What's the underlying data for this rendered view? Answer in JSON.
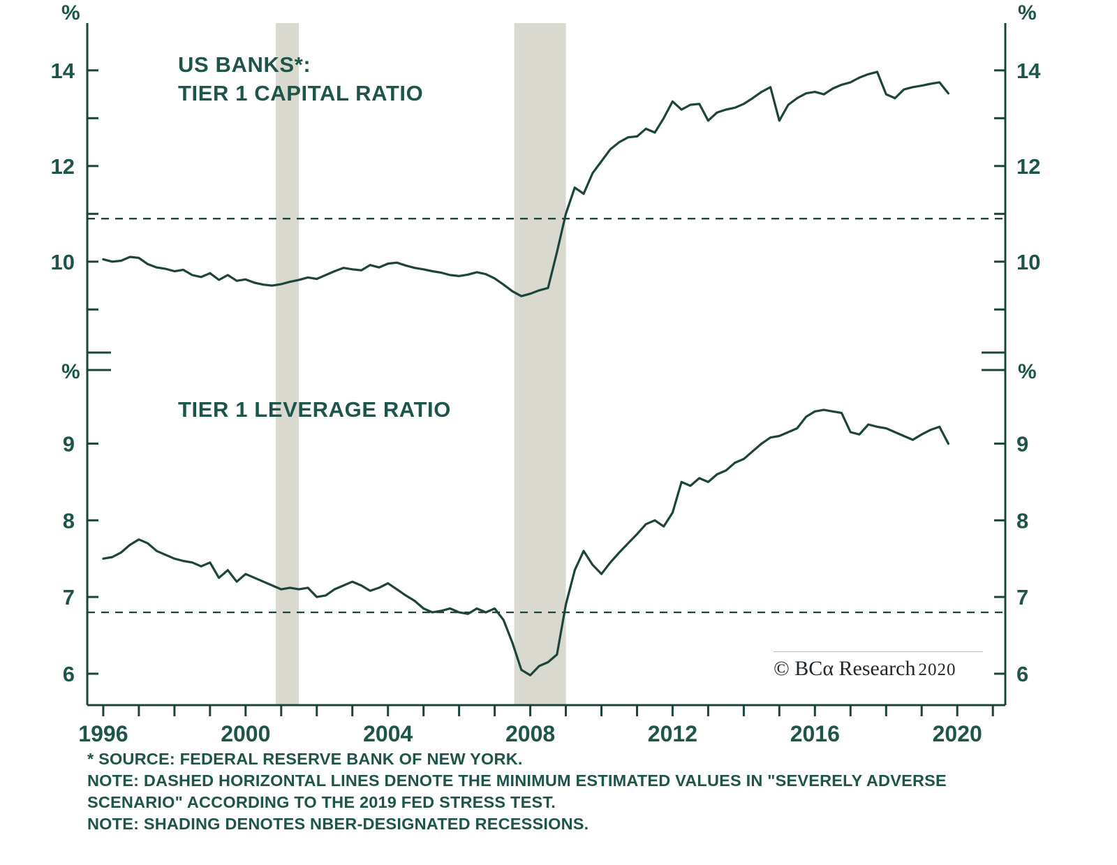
{
  "colors": {
    "line": "#1C443C",
    "text": "#1D554B",
    "recession_shading": "#D9D9CF",
    "logo_text": "#20282e"
  },
  "chart_data": [
    {
      "type": "line",
      "title_lines": [
        "US BANKS*:",
        "TIER 1 CAPITAL RATIO"
      ],
      "unit": "%",
      "ylim": [
        8.1,
        14.99
      ],
      "yticks": [
        10,
        12,
        14
      ],
      "stress_test_minimum": 10.9,
      "x_start": 1996.0,
      "x_step": 0.25,
      "values": [
        10.05,
        10.0,
        10.02,
        10.1,
        10.08,
        9.95,
        9.88,
        9.85,
        9.8,
        9.83,
        9.72,
        9.68,
        9.76,
        9.62,
        9.72,
        9.6,
        9.63,
        9.56,
        9.52,
        9.5,
        9.53,
        9.58,
        9.62,
        9.67,
        9.64,
        9.72,
        9.8,
        9.87,
        9.84,
        9.82,
        9.93,
        9.88,
        9.96,
        9.98,
        9.92,
        9.87,
        9.84,
        9.8,
        9.77,
        9.72,
        9.7,
        9.73,
        9.78,
        9.74,
        9.65,
        9.52,
        9.38,
        9.28,
        9.33,
        9.4,
        9.45,
        10.2,
        11.0,
        11.55,
        11.42,
        11.85,
        12.1,
        12.35,
        12.5,
        12.6,
        12.62,
        12.78,
        12.7,
        13.0,
        13.35,
        13.18,
        13.28,
        13.3,
        12.95,
        13.12,
        13.18,
        13.22,
        13.3,
        13.42,
        13.55,
        13.65,
        12.95,
        13.28,
        13.42,
        13.52,
        13.55,
        13.5,
        13.62,
        13.7,
        13.75,
        13.85,
        13.92,
        13.97,
        13.5,
        13.42,
        13.6,
        13.65,
        13.68,
        13.72,
        13.75,
        13.52
      ]
    },
    {
      "type": "line",
      "title_lines": [
        "TIER 1 LEVERAGE RATIO"
      ],
      "unit": "%",
      "ylim": [
        5.59,
        9.96
      ],
      "yticks": [
        6,
        7,
        8,
        9
      ],
      "stress_test_minimum": 6.8,
      "x_start": 1996.0,
      "x_step": 0.25,
      "values": [
        7.5,
        7.52,
        7.58,
        7.68,
        7.75,
        7.7,
        7.6,
        7.55,
        7.5,
        7.47,
        7.45,
        7.4,
        7.45,
        7.25,
        7.35,
        7.2,
        7.3,
        7.25,
        7.2,
        7.15,
        7.1,
        7.12,
        7.1,
        7.12,
        7.0,
        7.02,
        7.1,
        7.15,
        7.2,
        7.15,
        7.08,
        7.12,
        7.18,
        7.1,
        7.02,
        6.95,
        6.85,
        6.8,
        6.82,
        6.85,
        6.8,
        6.78,
        6.85,
        6.8,
        6.85,
        6.7,
        6.4,
        6.05,
        5.98,
        6.1,
        6.15,
        6.25,
        6.9,
        7.35,
        7.6,
        7.42,
        7.3,
        7.45,
        7.58,
        7.7,
        7.82,
        7.95,
        8.0,
        7.92,
        8.1,
        8.5,
        8.45,
        8.55,
        8.5,
        8.6,
        8.65,
        8.75,
        8.8,
        8.9,
        9.0,
        9.08,
        9.1,
        9.15,
        9.2,
        9.35,
        9.42,
        9.44,
        9.42,
        9.4,
        9.15,
        9.12,
        9.25,
        9.22,
        9.2,
        9.15,
        9.1,
        9.05,
        9.12,
        9.18,
        9.22,
        9.0
      ]
    }
  ],
  "x_axis": {
    "range": [
      1995.55,
      2021.35
    ],
    "tick_start": 1996,
    "tick_end": 2021,
    "label_years": [
      1996,
      2000,
      2004,
      2008,
      2012,
      2016,
      2020
    ],
    "labels": [
      "1996",
      "2000",
      "2004",
      "2008",
      "2012",
      "2016",
      "2020"
    ]
  },
  "recessions": [
    {
      "start": 2000.85,
      "end": 2001.5
    },
    {
      "start": 2007.55,
      "end": 2009.0
    }
  ],
  "footnotes": [
    "* SOURCE: FEDERAL RESERVE BANK OF NEW YORK.",
    "NOTE: DASHED HORIZONTAL LINES DENOTE THE MINIMUM ESTIMATED VALUES IN \"SEVERELY ADVERSE",
    "SCENARIO\" ACCORDING TO THE 2019 FED STRESS TEST.",
    "NOTE: SHADING DENOTES NBER-DESIGNATED RECESSIONS."
  ],
  "logo": {
    "brand": "© BCα Research",
    "year": "2020"
  }
}
